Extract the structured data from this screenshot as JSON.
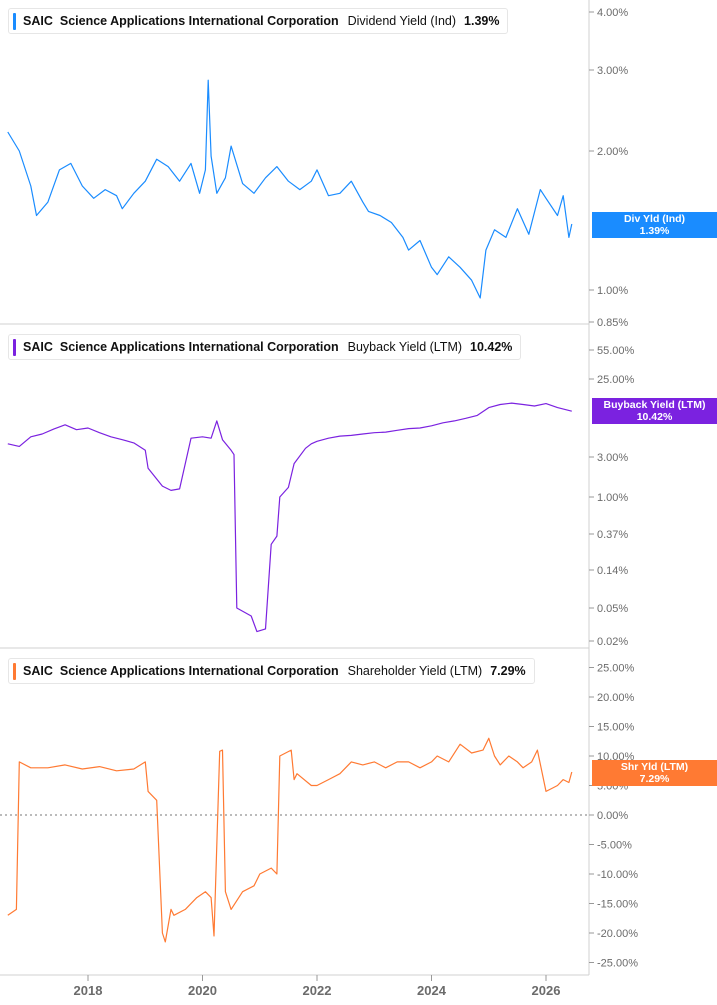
{
  "panels": [
    {
      "ticker": "SAIC",
      "company": "Science Applications International Corporation",
      "metric": "Dividend Yield (Ind)",
      "value": "1.39%",
      "color": "#1a8cff",
      "tag_label": "Div Yld (Ind)",
      "tag_value": "1.39%",
      "y_ticks": [
        "4.00%",
        "3.00%",
        "2.00%",
        "1.00%",
        "0.85%"
      ]
    },
    {
      "ticker": "SAIC",
      "company": "Science Applications International Corporation",
      "metric": "Buyback Yield (LTM)",
      "value": "10.42%",
      "color": "#7b22e0",
      "tag_label": "Buyback Yield (LTM)",
      "tag_value": "10.42%",
      "y_ticks": [
        "55.00%",
        "25.00%",
        "3.00%",
        "1.00%",
        "0.37%",
        "0.14%",
        "0.05%",
        "0.02%"
      ]
    },
    {
      "ticker": "SAIC",
      "company": "Science Applications International Corporation",
      "metric": "Shareholder Yield (LTM)",
      "value": "7.29%",
      "color": "#ff7a33",
      "tag_label": "Shr Yld (LTM)",
      "tag_value": "7.29%",
      "y_ticks": [
        "25.00%",
        "20.00%",
        "15.00%",
        "10.00%",
        "5.00%",
        "0.00%",
        "-5.00%",
        "-10.00%",
        "-15.00%",
        "-20.00%",
        "-25.00%"
      ]
    }
  ],
  "x_ticks": [
    "2018",
    "2020",
    "2022",
    "2024",
    "2026"
  ],
  "chart_data": [
    {
      "type": "line",
      "title": "SAIC Science Applications International Corporation Dividend Yield (Ind)",
      "y_scale": "log",
      "y_ticks": [
        4.0,
        3.0,
        2.0,
        1.0,
        0.85
      ],
      "ylim": [
        0.85,
        4.1
      ],
      "x_ticks": [
        2018,
        2020,
        2022,
        2024,
        2026
      ],
      "xlim": [
        2016.6,
        2026.5
      ],
      "series": [
        {
          "name": "Dividend Yield (Ind)",
          "x": [
            2016.6,
            2016.8,
            2017.0,
            2017.1,
            2017.3,
            2017.5,
            2017.7,
            2017.9,
            2018.1,
            2018.3,
            2018.5,
            2018.6,
            2018.8,
            2019.0,
            2019.2,
            2019.4,
            2019.6,
            2019.8,
            2019.95,
            2020.05,
            2020.1,
            2020.15,
            2020.25,
            2020.4,
            2020.5,
            2020.7,
            2020.9,
            2021.1,
            2021.3,
            2021.5,
            2021.7,
            2021.9,
            2022.0,
            2022.2,
            2022.4,
            2022.6,
            2022.8,
            2022.9,
            2023.1,
            2023.3,
            2023.5,
            2023.6,
            2023.8,
            2024.0,
            2024.1,
            2024.3,
            2024.5,
            2024.7,
            2024.85,
            2024.95,
            2025.1,
            2025.3,
            2025.5,
            2025.7,
            2025.9,
            2026.0,
            2026.2,
            2026.3,
            2026.4,
            2026.45
          ],
          "y": [
            2.2,
            2.0,
            1.68,
            1.45,
            1.55,
            1.82,
            1.88,
            1.68,
            1.58,
            1.65,
            1.6,
            1.5,
            1.62,
            1.72,
            1.92,
            1.85,
            1.72,
            1.88,
            1.62,
            1.82,
            2.85,
            1.95,
            1.62,
            1.75,
            2.05,
            1.7,
            1.62,
            1.75,
            1.85,
            1.72,
            1.65,
            1.72,
            1.82,
            1.6,
            1.62,
            1.72,
            1.55,
            1.48,
            1.45,
            1.4,
            1.3,
            1.22,
            1.28,
            1.12,
            1.08,
            1.18,
            1.12,
            1.05,
            0.96,
            1.22,
            1.35,
            1.3,
            1.5,
            1.32,
            1.65,
            1.58,
            1.45,
            1.6,
            1.3,
            1.39
          ]
        }
      ]
    },
    {
      "type": "line",
      "title": "SAIC Science Applications International Corporation Buyback Yield (LTM)",
      "y_scale": "log",
      "y_ticks": [
        55.0,
        25.0,
        3.0,
        1.0,
        0.37,
        0.14,
        0.05,
        0.02
      ],
      "ylim": [
        0.02,
        60
      ],
      "x_ticks": [
        2018,
        2020,
        2022,
        2024,
        2026
      ],
      "xlim": [
        2016.6,
        2026.5
      ],
      "series": [
        {
          "name": "Buyback Yield (LTM)",
          "x": [
            2016.6,
            2016.8,
            2017.0,
            2017.2,
            2017.4,
            2017.6,
            2017.8,
            2018.0,
            2018.2,
            2018.4,
            2018.6,
            2018.8,
            2019.0,
            2019.05,
            2019.3,
            2019.45,
            2019.6,
            2019.8,
            2020.0,
            2020.15,
            2020.25,
            2020.35,
            2020.5,
            2020.55,
            2020.6,
            2020.85,
            2020.95,
            2021.1,
            2021.2,
            2021.3,
            2021.35,
            2021.5,
            2021.6,
            2021.8,
            2021.9,
            2022.0,
            2022.2,
            2022.4,
            2022.6,
            2022.8,
            2023.0,
            2023.2,
            2023.4,
            2023.6,
            2023.8,
            2024.0,
            2024.2,
            2024.4,
            2024.6,
            2024.8,
            2025.0,
            2025.2,
            2025.4,
            2025.6,
            2025.8,
            2026.0,
            2026.2,
            2026.45
          ],
          "y": [
            4.3,
            4.0,
            5.2,
            5.6,
            6.4,
            7.2,
            6.3,
            6.6,
            5.8,
            5.2,
            4.8,
            4.4,
            3.6,
            2.2,
            1.35,
            1.2,
            1.25,
            5.0,
            5.2,
            5.0,
            8.0,
            4.8,
            3.6,
            3.2,
            0.05,
            0.04,
            0.026,
            0.028,
            0.28,
            0.35,
            1.0,
            1.3,
            2.5,
            3.8,
            4.3,
            4.6,
            5.0,
            5.3,
            5.4,
            5.6,
            5.8,
            5.9,
            6.2,
            6.5,
            6.6,
            7.0,
            7.6,
            8.0,
            8.6,
            9.3,
            11.5,
            12.5,
            13.0,
            12.5,
            12.0,
            12.8,
            11.5,
            10.42
          ]
        }
      ]
    },
    {
      "type": "line",
      "title": "SAIC Science Applications International Corporation Shareholder Yield (LTM)",
      "y_scale": "linear",
      "y_ticks": [
        25,
        20,
        15,
        10,
        5,
        0,
        -5,
        -10,
        -15,
        -20,
        -25
      ],
      "ylim": [
        -25,
        25
      ],
      "x_ticks": [
        2018,
        2020,
        2022,
        2024,
        2026
      ],
      "xlim": [
        2016.6,
        2026.5
      ],
      "series": [
        {
          "name": "Shareholder Yield (LTM)",
          "x": [
            2016.6,
            2016.75,
            2016.8,
            2017.0,
            2017.3,
            2017.6,
            2017.9,
            2018.2,
            2018.5,
            2018.8,
            2019.0,
            2019.05,
            2019.2,
            2019.3,
            2019.35,
            2019.45,
            2019.5,
            2019.7,
            2019.9,
            2020.05,
            2020.15,
            2020.2,
            2020.3,
            2020.35,
            2020.4,
            2020.5,
            2020.7,
            2020.9,
            2021.0,
            2021.2,
            2021.3,
            2021.35,
            2021.55,
            2021.6,
            2021.65,
            2021.9,
            2022.0,
            2022.2,
            2022.4,
            2022.6,
            2022.8,
            2023.0,
            2023.2,
            2023.4,
            2023.6,
            2023.8,
            2024.0,
            2024.1,
            2024.3,
            2024.5,
            2024.7,
            2024.9,
            2025.0,
            2025.1,
            2025.2,
            2025.35,
            2025.5,
            2025.6,
            2025.75,
            2025.85,
            2026.0,
            2026.1,
            2026.2,
            2026.3,
            2026.4,
            2026.45
          ],
          "y": [
            -17,
            -16,
            9,
            8,
            8,
            8.5,
            7.8,
            8.2,
            7.5,
            7.8,
            9,
            4,
            2.5,
            -20,
            -21.5,
            -16,
            -17,
            -16,
            -14,
            -13,
            -14,
            -20.5,
            10.8,
            11,
            -13,
            -16,
            -13,
            -12,
            -10,
            -9,
            -10,
            10,
            11,
            6,
            7,
            5,
            5,
            6,
            7,
            9,
            8.5,
            9,
            8,
            9,
            9,
            8,
            9,
            10,
            9,
            12,
            10.5,
            11,
            13,
            10,
            8.5,
            10,
            9,
            8,
            9,
            11,
            4,
            4.5,
            5,
            6,
            5.5,
            7.29
          ]
        }
      ]
    }
  ]
}
